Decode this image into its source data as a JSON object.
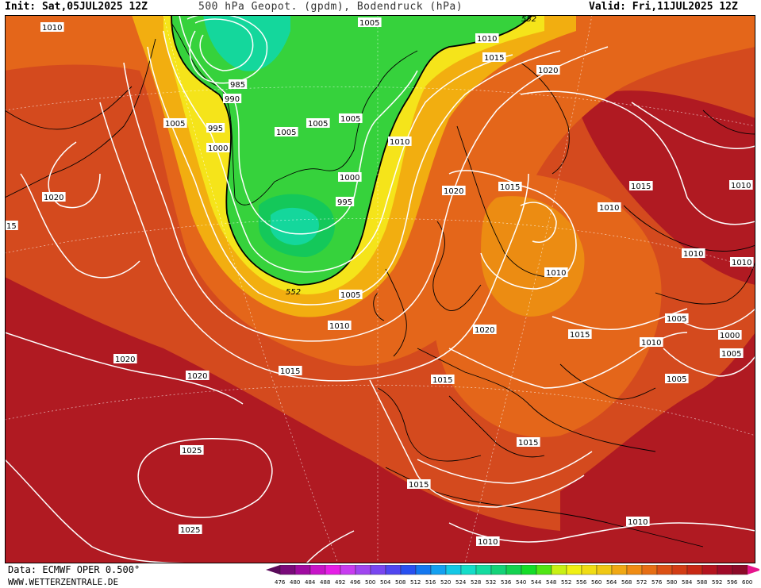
{
  "header": {
    "init": "Init: Sat,05JUL2025 12Z",
    "title": "500 hPa Geopot. (gpdm), Bodendruck (hPa)",
    "valid": "Valid: Fri,11JUL2025 12Z"
  },
  "footer": {
    "source": "Data: ECMWF OPER 0.500°",
    "site": "WWW.WETTERZENTRALE.DE"
  },
  "colorbar": {
    "ticks": [
      "476",
      "480",
      "484",
      "488",
      "492",
      "496",
      "500",
      "504",
      "508",
      "512",
      "516",
      "520",
      "524",
      "528",
      "532",
      "536",
      "540",
      "544",
      "548",
      "552",
      "556",
      "560",
      "564",
      "568",
      "572",
      "576",
      "580",
      "584",
      "588",
      "592",
      "596",
      "600"
    ],
    "colors": [
      "#5a0a5a",
      "#7a0a7a",
      "#a00aa0",
      "#c814c8",
      "#e61ee6",
      "#c83cf0",
      "#a046f0",
      "#7846f0",
      "#5046f0",
      "#2850f0",
      "#1478f0",
      "#14a0f0",
      "#14c8e6",
      "#14dcc8",
      "#14dca0",
      "#14d278",
      "#14d250",
      "#14dc28",
      "#50e614",
      "#c8f014",
      "#f0f014",
      "#f0dc14",
      "#f0c814",
      "#f0a814",
      "#f08c14",
      "#e66e14",
      "#dc5014",
      "#d23c14",
      "#c82814",
      "#b4141e",
      "#a00a28",
      "#8c0a28",
      "#e6148c"
    ]
  },
  "map": {
    "colors": {
      "ocean_hot": "#c0282a",
      "deep_red": "#b01a22",
      "red_orange": "#d44a1e",
      "orange": "#e4661a",
      "orange_light": "#ec8c12",
      "gold": "#f2ae10",
      "yellow": "#f5e41a",
      "yellow_green": "#c8ec14",
      "green": "#36d23c",
      "green_dark": "#14c85a",
      "teal": "#14d79c"
    },
    "contour_label_552": "552",
    "isobar_labels": [
      {
        "id": "l1010a",
        "text": "1010"
      },
      {
        "id": "l1005top",
        "text": "1005"
      },
      {
        "id": "l552top",
        "text": "552"
      },
      {
        "id": "l985",
        "text": "985"
      },
      {
        "id": "l990",
        "text": "990"
      },
      {
        "id": "l995a",
        "text": "995"
      },
      {
        "id": "l1005g1",
        "text": "1005"
      },
      {
        "id": "l1005g2",
        "text": "1005"
      },
      {
        "id": "l1005g3",
        "text": "1005"
      },
      {
        "id": "l1005g4",
        "text": "1005"
      },
      {
        "id": "l1000a",
        "text": "1000"
      },
      {
        "id": "l1000b",
        "text": "1000"
      },
      {
        "id": "l995b",
        "text": "995"
      },
      {
        "id": "l1010n1",
        "text": "1010"
      },
      {
        "id": "l1015n1",
        "text": "1015"
      },
      {
        "id": "l1020n",
        "text": "1020"
      },
      {
        "id": "l1010c",
        "text": "1010"
      },
      {
        "id": "l1020w",
        "text": "1020"
      },
      {
        "id": "l15",
        "text": "15"
      },
      {
        "id": "l1020s",
        "text": "1020"
      },
      {
        "id": "l1015e1",
        "text": "1015"
      },
      {
        "id": "l1010e1",
        "text": "1010"
      },
      {
        "id": "l1015ne",
        "text": "1015"
      },
      {
        "id": "l1010ne",
        "text": "1010"
      },
      {
        "id": "l1010e2",
        "text": "1010"
      },
      {
        "id": "l1010e3",
        "text": "1010"
      },
      {
        "id": "l1010e4",
        "text": "1010"
      },
      {
        "id": "l1005a",
        "text": "1005"
      },
      {
        "id": "l1010b",
        "text": "1010"
      },
      {
        "id": "l1015c",
        "text": "1015"
      },
      {
        "id": "l1020c",
        "text": "1020"
      },
      {
        "id": "l1015d",
        "text": "1015"
      },
      {
        "id": "l1010f",
        "text": "1010"
      },
      {
        "id": "l1005e",
        "text": "1005"
      },
      {
        "id": "l1000e",
        "text": "1000"
      },
      {
        "id": "l1005f",
        "text": "1005"
      },
      {
        "id": "l1005h",
        "text": "1005"
      },
      {
        "id": "l1020atl",
        "text": "1020"
      },
      {
        "id": "l1020atl2",
        "text": "1020"
      },
      {
        "id": "l1015atl",
        "text": "1015"
      },
      {
        "id": "l1015ib",
        "text": "1015"
      },
      {
        "id": "l1015med",
        "text": "1015"
      },
      {
        "id": "l1015af",
        "text": "1015"
      },
      {
        "id": "l1025a",
        "text": "1025"
      },
      {
        "id": "l1025b",
        "text": "1025"
      },
      {
        "id": "l1010af",
        "text": "1010"
      },
      {
        "id": "l1010sw",
        "text": "1010"
      },
      {
        "id": "l1020bot",
        "text": "1020"
      }
    ]
  }
}
